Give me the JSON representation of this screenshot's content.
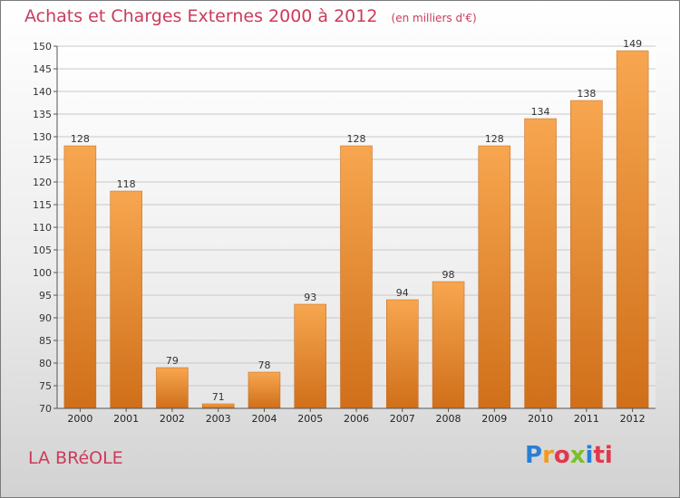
{
  "header": {
    "title": "Achats et Charges Externes 2000 à 2012",
    "subtitle": "(en milliers d'€)"
  },
  "footer": {
    "commune": "LA BRéOLE",
    "logo": [
      "P",
      "r",
      "o",
      "x",
      "i",
      "ti"
    ]
  },
  "colors": {
    "bar_top": "#f7a64f",
    "bar_bottom": "#d06f1a",
    "title": "#cc3a5a"
  },
  "chart_data": {
    "type": "bar",
    "title": "Achats et Charges Externes 2000 à 2012",
    "subtitle": "(en milliers d'€)",
    "categories": [
      "2000",
      "2001",
      "2002",
      "2003",
      "2004",
      "2005",
      "2006",
      "2007",
      "2008",
      "2009",
      "2010",
      "2011",
      "2012"
    ],
    "values": [
      128,
      118,
      79,
      71,
      78,
      93,
      128,
      94,
      98,
      128,
      134,
      138,
      149
    ],
    "ylim": [
      70,
      150
    ],
    "yticks": [
      70,
      75,
      80,
      85,
      90,
      95,
      100,
      105,
      110,
      115,
      120,
      125,
      130,
      135,
      140,
      145,
      150
    ],
    "grid": true,
    "xlabel": "",
    "ylabel": ""
  }
}
